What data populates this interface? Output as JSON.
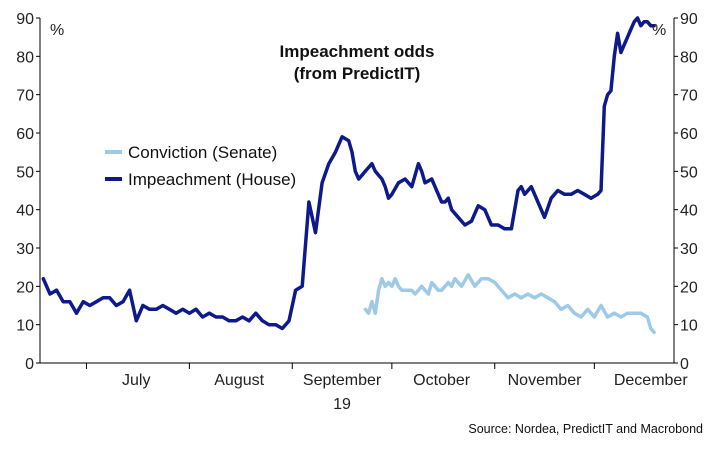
{
  "chart_data": {
    "type": "line",
    "title": "Impeachment odds",
    "subtitle": "(from PredictIT)",
    "unit_left": "%",
    "unit_right": "%",
    "source": "Source: Nordea, PredictIT and Macrobond",
    "ylim": [
      0,
      90
    ],
    "y_ticks": [
      0,
      10,
      20,
      30,
      40,
      50,
      60,
      70,
      80,
      90
    ],
    "x_month_labels": [
      "July",
      "August",
      "September",
      "October",
      "November",
      "December"
    ],
    "x_year_label": "19",
    "legend_placement": "center-left",
    "grid": false,
    "series": [
      {
        "name": "Conviction (Senate)",
        "color": "#9ecae8",
        "x": [
          "2019-09-23",
          "2019-09-24",
          "2019-09-25",
          "2019-09-26",
          "2019-09-27",
          "2019-09-28",
          "2019-09-29",
          "2019-09-30",
          "2019-10-01",
          "2019-10-02",
          "2019-10-03",
          "2019-10-04",
          "2019-10-05",
          "2019-10-06",
          "2019-10-07",
          "2019-10-08",
          "2019-10-09",
          "2019-10-10",
          "2019-10-11",
          "2019-10-12",
          "2019-10-13",
          "2019-10-14",
          "2019-10-15",
          "2019-10-16",
          "2019-10-17",
          "2019-10-18",
          "2019-10-19",
          "2019-10-20",
          "2019-10-21",
          "2019-10-22",
          "2019-10-24",
          "2019-10-26",
          "2019-10-28",
          "2019-10-30",
          "2019-11-01",
          "2019-11-03",
          "2019-11-05",
          "2019-11-07",
          "2019-11-09",
          "2019-11-11",
          "2019-11-13",
          "2019-11-15",
          "2019-11-17",
          "2019-11-19",
          "2019-11-21",
          "2019-11-23",
          "2019-11-25",
          "2019-11-27",
          "2019-11-29",
          "2019-12-01",
          "2019-12-03",
          "2019-12-05",
          "2019-12-07",
          "2019-12-09",
          "2019-12-11",
          "2019-12-13",
          "2019-12-15",
          "2019-12-17",
          "2019-12-18",
          "2019-12-19"
        ],
        "values": [
          14,
          13,
          16,
          13,
          19,
          22,
          20,
          21,
          20,
          22,
          20,
          19,
          19,
          19,
          19,
          18,
          19,
          20,
          19,
          18,
          21,
          20,
          19,
          19,
          20,
          21,
          20,
          22,
          21,
          20,
          23,
          20,
          22,
          22,
          21,
          19,
          17,
          18,
          17,
          18,
          17,
          18,
          17,
          16,
          14,
          15,
          13,
          12,
          14,
          12,
          15,
          12,
          13,
          12,
          13,
          13,
          13,
          12,
          9,
          8
        ]
      },
      {
        "name": "Impeachment (House)",
        "color": "#0e1a8c",
        "x": [
          "2019-06-18",
          "2019-06-20",
          "2019-06-22",
          "2019-06-24",
          "2019-06-26",
          "2019-06-28",
          "2019-06-30",
          "2019-07-02",
          "2019-07-04",
          "2019-07-06",
          "2019-07-08",
          "2019-07-10",
          "2019-07-12",
          "2019-07-14",
          "2019-07-16",
          "2019-07-18",
          "2019-07-20",
          "2019-07-22",
          "2019-07-24",
          "2019-07-26",
          "2019-07-28",
          "2019-07-30",
          "2019-08-01",
          "2019-08-03",
          "2019-08-05",
          "2019-08-07",
          "2019-08-09",
          "2019-08-11",
          "2019-08-13",
          "2019-08-15",
          "2019-08-17",
          "2019-08-19",
          "2019-08-21",
          "2019-08-23",
          "2019-08-25",
          "2019-08-27",
          "2019-08-29",
          "2019-08-31",
          "2019-09-02",
          "2019-09-04",
          "2019-09-06",
          "2019-09-08",
          "2019-09-10",
          "2019-09-12",
          "2019-09-14",
          "2019-09-16",
          "2019-09-18",
          "2019-09-19",
          "2019-09-20",
          "2019-09-21",
          "2019-09-22",
          "2019-09-23",
          "2019-09-24",
          "2019-09-25",
          "2019-09-26",
          "2019-09-27",
          "2019-09-28",
          "2019-09-29",
          "2019-09-30",
          "2019-10-01",
          "2019-10-03",
          "2019-10-05",
          "2019-10-07",
          "2019-10-09",
          "2019-10-10",
          "2019-10-11",
          "2019-10-13",
          "2019-10-15",
          "2019-10-16",
          "2019-10-17",
          "2019-10-18",
          "2019-10-19",
          "2019-10-21",
          "2019-10-23",
          "2019-10-25",
          "2019-10-27",
          "2019-10-29",
          "2019-10-31",
          "2019-11-02",
          "2019-11-04",
          "2019-11-06",
          "2019-11-08",
          "2019-11-09",
          "2019-11-10",
          "2019-11-12",
          "2019-11-14",
          "2019-11-16",
          "2019-11-18",
          "2019-11-20",
          "2019-11-22",
          "2019-11-24",
          "2019-11-26",
          "2019-11-28",
          "2019-11-30",
          "2019-12-02",
          "2019-12-03",
          "2019-12-04",
          "2019-12-05",
          "2019-12-06",
          "2019-12-07",
          "2019-12-08",
          "2019-12-09",
          "2019-12-10",
          "2019-12-11",
          "2019-12-12",
          "2019-12-13",
          "2019-12-14",
          "2019-12-15",
          "2019-12-16",
          "2019-12-17",
          "2019-12-18",
          "2019-12-19"
        ],
        "values": [
          22,
          18,
          19,
          16,
          16,
          13,
          16,
          15,
          16,
          17,
          17,
          15,
          16,
          19,
          11,
          15,
          14,
          14,
          15,
          14,
          13,
          14,
          13,
          14,
          12,
          13,
          12,
          12,
          11,
          11,
          12,
          11,
          13,
          11,
          10,
          10,
          9,
          11,
          19,
          20,
          42,
          34,
          47,
          52,
          55,
          59,
          58,
          55,
          50,
          48,
          49,
          50,
          51,
          52,
          50,
          49,
          48,
          46,
          43,
          44,
          47,
          48,
          46,
          52,
          50,
          47,
          48,
          44,
          42,
          42,
          43,
          40,
          38,
          36,
          37,
          41,
          40,
          36,
          36,
          35,
          35,
          45,
          46,
          44,
          46,
          42,
          38,
          43,
          45,
          44,
          44,
          45,
          44,
          43,
          44,
          45,
          67,
          70,
          71,
          80,
          86,
          81,
          83,
          85,
          87,
          89,
          90,
          88,
          89,
          89,
          88,
          88
        ]
      }
    ]
  }
}
